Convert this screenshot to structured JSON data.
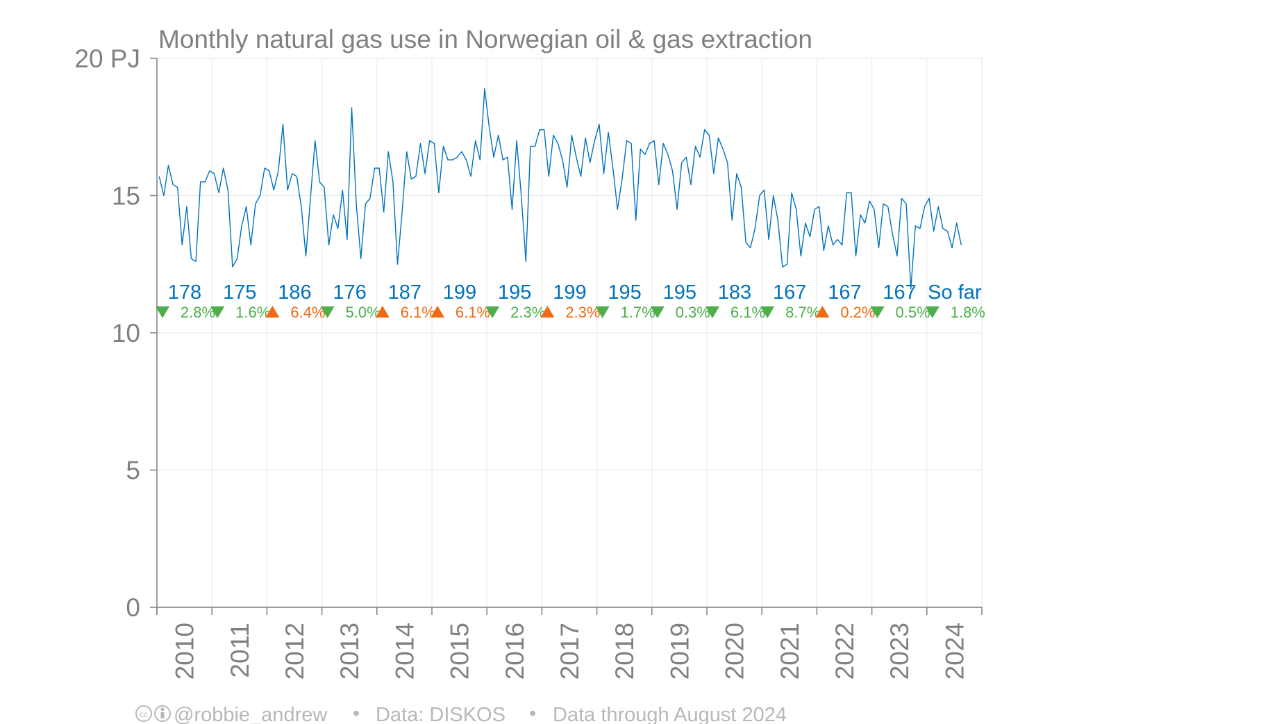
{
  "chart_data": {
    "type": "line",
    "title": "Monthly natural gas use in Norwegian oil & gas extraction",
    "ylabel": "",
    "xlabel": "",
    "y_unit": "PJ",
    "ylim": [
      0,
      20
    ],
    "y_ticks": [
      0,
      5,
      10,
      15,
      20
    ],
    "y_tick_labels": [
      "0",
      "5",
      "10",
      "15",
      "20 PJ"
    ],
    "xlim": [
      "2010-01",
      "2025-01"
    ],
    "x_tick_labels": [
      "2010",
      "2011",
      "2012",
      "2013",
      "2014",
      "2015",
      "2016",
      "2017",
      "2018",
      "2019",
      "2020",
      "2021",
      "2022",
      "2023",
      "2024"
    ],
    "grid": true,
    "series_color": "#0072bd",
    "series": [
      {
        "start": "2010-01",
        "frequency": "monthly",
        "values": [
          15.7,
          15.0,
          16.1,
          15.4,
          15.3,
          13.2,
          14.6,
          12.7,
          12.6,
          15.5,
          15.5,
          15.9,
          15.8,
          15.1,
          16.0,
          15.2,
          12.4,
          12.7,
          13.9,
          14.6,
          13.2,
          14.7,
          15.0,
          16.0,
          15.9,
          15.2,
          15.9,
          17.6,
          15.2,
          15.8,
          15.7,
          14.6,
          12.8,
          14.9,
          17.0,
          15.5,
          15.3,
          13.2,
          14.3,
          13.8,
          15.2,
          13.4,
          18.2,
          14.7,
          12.7,
          14.7,
          14.9,
          16.0,
          16.0,
          14.4,
          16.6,
          15.5,
          12.5,
          14.4,
          16.6,
          15.6,
          15.7,
          16.9,
          15.8,
          17.0,
          16.9,
          15.1,
          16.8,
          16.3,
          16.3,
          16.4,
          16.6,
          16.3,
          15.7,
          17.0,
          16.3,
          18.9,
          17.5,
          16.4,
          17.2,
          16.3,
          16.4,
          14.5,
          17.0,
          15.0,
          12.6,
          16.8,
          16.8,
          17.4,
          17.4,
          15.7,
          17.2,
          16.9,
          16.3,
          15.3,
          17.2,
          16.4,
          15.7,
          17.1,
          16.2,
          17.0,
          17.6,
          15.8,
          17.3,
          16.0,
          14.5,
          15.6,
          17.0,
          16.9,
          14.1,
          16.7,
          16.5,
          16.9,
          17.0,
          15.4,
          16.9,
          16.5,
          15.9,
          14.5,
          16.2,
          16.4,
          15.4,
          16.8,
          16.4,
          17.4,
          17.2,
          15.8,
          17.1,
          16.7,
          16.2,
          14.1,
          15.8,
          15.3,
          13.3,
          13.1,
          13.8,
          15.0,
          15.2,
          13.4,
          15.0,
          14.1,
          12.4,
          12.5,
          15.1,
          14.5,
          12.8,
          14.0,
          13.5,
          14.5,
          14.6,
          13.0,
          13.9,
          13.2,
          13.4,
          13.2,
          15.1,
          15.1,
          12.8,
          14.3,
          14.0,
          14.8,
          14.5,
          13.1,
          14.7,
          14.6,
          13.6,
          12.8,
          14.9,
          14.7,
          11.6,
          13.9,
          13.8,
          14.6,
          14.9,
          13.7,
          14.6,
          13.8,
          13.7,
          13.1,
          14.0,
          13.2
        ]
      }
    ],
    "annual_totals": [
      {
        "year": "2010",
        "label": "178",
        "change": "2.8%",
        "direction": "down"
      },
      {
        "year": "2011",
        "label": "175",
        "change": "1.6%",
        "direction": "down"
      },
      {
        "year": "2012",
        "label": "186",
        "change": "6.4%",
        "direction": "up"
      },
      {
        "year": "2013",
        "label": "176",
        "change": "5.0%",
        "direction": "down"
      },
      {
        "year": "2014",
        "label": "187",
        "change": "6.1%",
        "direction": "up"
      },
      {
        "year": "2015",
        "label": "199",
        "change": "6.1%",
        "direction": "up"
      },
      {
        "year": "2016",
        "label": "195",
        "change": "2.3%",
        "direction": "down"
      },
      {
        "year": "2017",
        "label": "199",
        "change": "2.3%",
        "direction": "up"
      },
      {
        "year": "2018",
        "label": "195",
        "change": "1.7%",
        "direction": "down"
      },
      {
        "year": "2019",
        "label": "195",
        "change": "0.3%",
        "direction": "down"
      },
      {
        "year": "2020",
        "label": "183",
        "change": "6.1%",
        "direction": "down"
      },
      {
        "year": "2021",
        "label": "167",
        "change": "8.7%",
        "direction": "down"
      },
      {
        "year": "2022",
        "label": "167",
        "change": "0.2%",
        "direction": "up"
      },
      {
        "year": "2023",
        "label": "167",
        "change": "0.5%",
        "direction": "down"
      },
      {
        "year": "2024",
        "label": "So far",
        "change": "1.8%",
        "direction": "down"
      }
    ],
    "up_color": "#f16913",
    "down_color": "#4daf4a"
  },
  "footer": {
    "license_icons": "cc-by-icons",
    "author": "@robbie_andrew",
    "sep": "•",
    "source": "Data: DISKOS",
    "through": "Data through August 2024"
  }
}
